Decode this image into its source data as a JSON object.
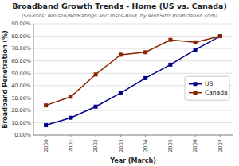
{
  "chart_data": {
    "type": "line",
    "title": "Broadband Growth Trends - Home (US vs. Canada)",
    "subtitle": "(Sources: Nielsen/NetRatings and Ipsos-Reid, by WebSiteOptimization.com)",
    "x_label": "Year (March)",
    "y_label": "Broadband Penetration (%)",
    "x": [
      2000,
      2001,
      2002,
      2003,
      2004,
      2005,
      2006,
      2007
    ],
    "series": [
      {
        "name": "US",
        "color": "#00008B",
        "marker": "square",
        "values": [
          8.0,
          14.0,
          23.0,
          34.0,
          46.0,
          57.0,
          69.0,
          80.0
        ]
      },
      {
        "name": "Canada",
        "color": "#8B2500",
        "marker": "square",
        "values": [
          24.0,
          31.0,
          49.0,
          65.0,
          67.0,
          77.0,
          75.0,
          80.0
        ]
      }
    ],
    "xlim": [
      1999.5,
      2007.5
    ],
    "xticks": [
      2000,
      2001,
      2002,
      2003,
      2004,
      2005,
      2006,
      2007
    ],
    "ylim": [
      0.0,
      90.0
    ],
    "yticks": [
      {
        "value": 0.0,
        "label": "0.00%"
      },
      {
        "value": 10.0,
        "label": "10.00%"
      },
      {
        "value": 20.0,
        "label": "20.00%"
      },
      {
        "value": 30.0,
        "label": "30.00%"
      },
      {
        "value": 40.0,
        "label": "40.00%"
      },
      {
        "value": 50.0,
        "label": "50.00%"
      },
      {
        "value": 60.0,
        "label": "60.00%"
      },
      {
        "value": 70.0,
        "label": "70.00%"
      },
      {
        "value": 80.0,
        "label": "80.00%"
      },
      {
        "value": 90.0,
        "label": "90.00%"
      }
    ],
    "grid": "y",
    "legend": "right"
  }
}
